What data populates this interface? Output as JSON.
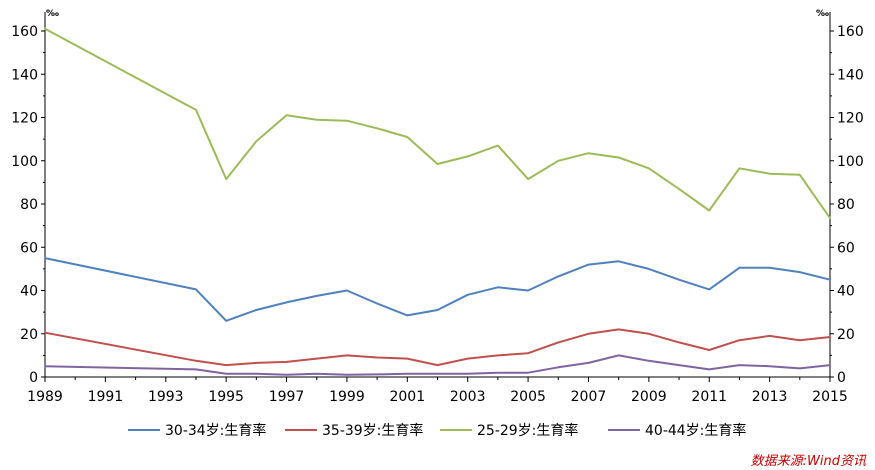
{
  "chart_data": {
    "type": "line",
    "x": [
      1989,
      1994,
      1995,
      1996,
      1997,
      1998,
      1999,
      2000,
      2001,
      2002,
      2003,
      2004,
      2005,
      2006,
      2007,
      2008,
      2009,
      2010,
      2011,
      2012,
      2013,
      2014,
      2015
    ],
    "x_tick_labels": [
      "1989",
      "1991",
      "1993",
      "1995",
      "1997",
      "1999",
      "2001",
      "2003",
      "2005",
      "2007",
      "2009",
      "2011",
      "2013",
      "2015"
    ],
    "y_tick_labels": [
      "0",
      "20",
      "40",
      "60",
      "80",
      "100",
      "120",
      "140",
      "160"
    ],
    "ylim": [
      0,
      170
    ],
    "xlim": [
      1989,
      2015
    ],
    "left_unit": "‰",
    "right_unit": "‰",
    "series": [
      {
        "name": "30-34岁:生育率",
        "color": "#4f81bd",
        "values": [
          55.0,
          40.5,
          26.0,
          31.0,
          34.5,
          37.5,
          40.0,
          34.0,
          28.5,
          31.0,
          38.0,
          41.5,
          40.0,
          46.5,
          52.0,
          53.5,
          50.0,
          45.0,
          40.5,
          50.5,
          50.5,
          48.5,
          45.0
        ]
      },
      {
        "name": "35-39岁:生育率",
        "color": "#c0504d",
        "values": [
          20.5,
          7.5,
          5.5,
          6.5,
          7.0,
          8.5,
          10.0,
          9.0,
          8.5,
          5.5,
          8.5,
          10.0,
          11.0,
          16.0,
          20.0,
          22.0,
          20.0,
          16.0,
          12.5,
          17.0,
          19.0,
          17.0,
          18.5
        ]
      },
      {
        "name": "25-29岁:生育率",
        "color": "#9bbb59",
        "values": [
          161.0,
          123.5,
          91.5,
          109.0,
          121.0,
          119.0,
          118.5,
          115.0,
          111.0,
          98.5,
          102.0,
          107.0,
          91.5,
          100.0,
          103.5,
          101.5,
          96.5,
          87.0,
          77.0,
          96.5,
          94.0,
          93.5,
          73.5
        ]
      },
      {
        "name": "40-44岁:生育率",
        "color": "#8064a2",
        "values": [
          5.0,
          3.5,
          1.5,
          1.5,
          1.0,
          1.5,
          1.0,
          1.2,
          1.5,
          1.5,
          1.5,
          2.0,
          2.0,
          4.5,
          6.5,
          10.0,
          7.5,
          5.5,
          3.5,
          5.5,
          5.0,
          4.0,
          5.5
        ]
      }
    ]
  },
  "source": "数据来源:Wind资讯"
}
